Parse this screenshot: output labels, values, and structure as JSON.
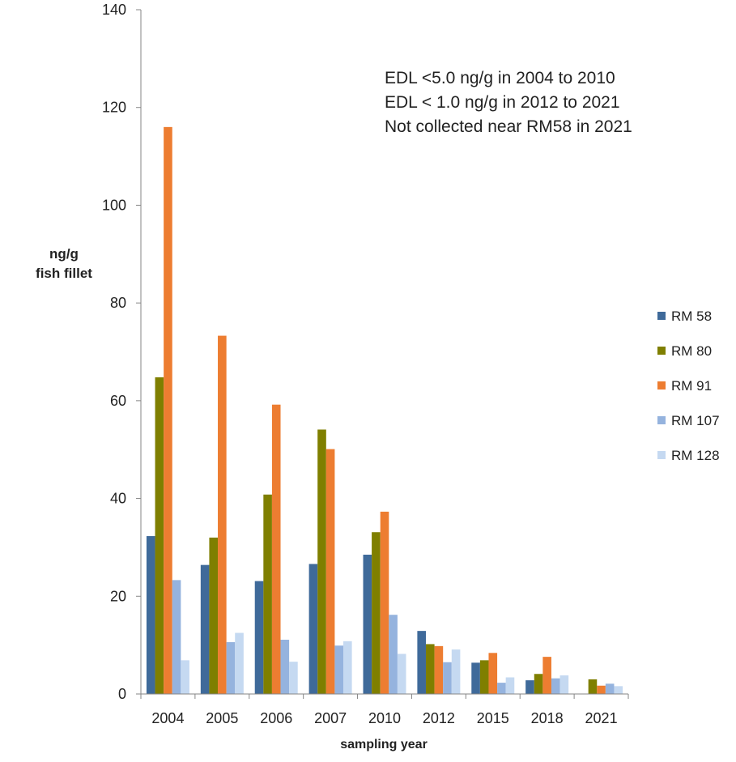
{
  "chart_data": {
    "type": "bar",
    "categories": [
      "2004",
      "2005",
      "2006",
      "2007",
      "2010",
      "2012",
      "2015",
      "2018",
      "2021"
    ],
    "series": [
      {
        "name": "RM 58",
        "color": "#3F6A9A",
        "values": [
          32.3,
          26.4,
          23.1,
          26.6,
          28.5,
          12.9,
          6.4,
          2.8,
          0
        ]
      },
      {
        "name": "RM 80",
        "color": "#7F7F00",
        "values": [
          64.8,
          32.0,
          40.8,
          54.1,
          33.1,
          10.2,
          6.9,
          4.1,
          3.0
        ]
      },
      {
        "name": "RM 91",
        "color": "#ED7D31",
        "values": [
          116.0,
          73.3,
          59.2,
          50.1,
          37.3,
          9.8,
          8.4,
          7.6,
          1.7
        ]
      },
      {
        "name": "RM 107",
        "color": "#95B3DE",
        "values": [
          23.3,
          10.6,
          11.1,
          9.9,
          16.2,
          6.5,
          2.3,
          3.2,
          2.1
        ]
      },
      {
        "name": "RM 128",
        "color": "#C5D9F1",
        "values": [
          6.9,
          12.5,
          6.6,
          10.8,
          8.2,
          9.1,
          3.4,
          3.8,
          1.6
        ]
      }
    ],
    "ylabel_lines": [
      "ng/g",
      "fish fillet"
    ],
    "xlabel": "sampling year",
    "ylim": [
      0,
      140
    ],
    "yticks": [
      0,
      20,
      40,
      60,
      80,
      100,
      120,
      140
    ],
    "grid": false,
    "legend_position": "right",
    "annotations": [
      "EDL <5.0 ng/g  in 2004 to 2010",
      "EDL < 1.0 ng/g in 2012 to 2021",
      "Not collected near RM58 in 2021"
    ]
  }
}
